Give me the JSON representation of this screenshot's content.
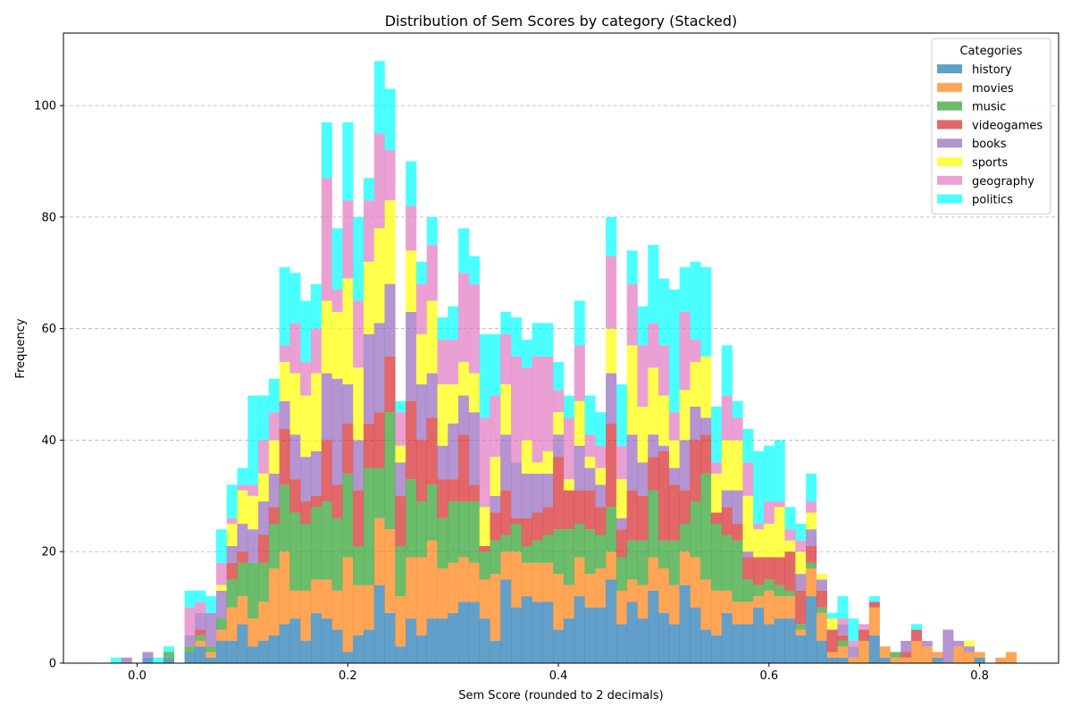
{
  "chart_data": {
    "type": "bar",
    "stacked": true,
    "title": "Distribution of Sem Scores by category (Stacked)",
    "xlabel": "Sem Score (rounded to 2 decimals)",
    "ylabel": "Frequency",
    "xlim": [
      -0.07,
      0.875
    ],
    "ylim": [
      0,
      113
    ],
    "x_ticks": [
      0.0,
      0.2,
      0.4,
      0.6,
      0.8
    ],
    "x_tick_labels": [
      "0.0",
      "0.2",
      "0.4",
      "0.6",
      "0.8"
    ],
    "y_ticks": [
      0,
      20,
      40,
      60,
      80,
      100
    ],
    "y_tick_labels": [
      "0",
      "20",
      "40",
      "60",
      "80",
      "100"
    ],
    "grid": "y-dashed",
    "bin_width": 0.01,
    "legend": {
      "title": "Categories",
      "position": "top-right"
    },
    "x": [
      -0.02,
      -0.01,
      0.0,
      0.01,
      0.02,
      0.03,
      0.04,
      0.05,
      0.06,
      0.07,
      0.08,
      0.09,
      0.1,
      0.11,
      0.12,
      0.13,
      0.14,
      0.15,
      0.16,
      0.17,
      0.18,
      0.19,
      0.2,
      0.21,
      0.22,
      0.23,
      0.24,
      0.25,
      0.26,
      0.27,
      0.28,
      0.29,
      0.3,
      0.31,
      0.32,
      0.33,
      0.34,
      0.35,
      0.36,
      0.37,
      0.38,
      0.39,
      0.4,
      0.41,
      0.42,
      0.43,
      0.44,
      0.45,
      0.46,
      0.47,
      0.48,
      0.49,
      0.5,
      0.51,
      0.52,
      0.53,
      0.54,
      0.55,
      0.56,
      0.57,
      0.58,
      0.59,
      0.6,
      0.61,
      0.62,
      0.63,
      0.64,
      0.65,
      0.66,
      0.67,
      0.68,
      0.69,
      0.7,
      0.71,
      0.72,
      0.73,
      0.74,
      0.75,
      0.76,
      0.77,
      0.78,
      0.79,
      0.8,
      0.81,
      0.82,
      0.83
    ],
    "series": [
      {
        "name": "history",
        "color": "#1f77b4",
        "values": [
          0,
          0,
          0,
          1,
          0,
          1,
          0,
          2,
          3,
          1,
          4,
          4,
          7,
          3,
          4,
          5,
          7,
          8,
          4,
          9,
          8,
          6,
          2,
          5,
          6,
          14,
          9,
          3,
          8,
          5,
          8,
          8,
          9,
          11,
          11,
          8,
          4,
          15,
          10,
          12,
          11,
          11,
          6,
          8,
          12,
          10,
          10,
          15,
          7,
          11,
          8,
          13,
          9,
          7,
          14,
          10,
          6,
          5,
          9,
          7,
          7,
          10,
          7,
          8,
          8,
          5,
          12,
          4,
          1,
          1,
          0,
          0,
          5,
          1,
          0,
          0,
          0,
          0,
          1,
          0,
          0,
          0,
          1,
          0,
          0,
          0
        ]
      },
      {
        "name": "movies",
        "color": "#ff7f0e",
        "values": [
          0,
          0,
          0,
          0,
          0,
          0,
          0,
          0,
          1,
          1,
          2,
          6,
          5,
          5,
          7,
          12,
          13,
          5,
          9,
          6,
          7,
          7,
          17,
          9,
          8,
          12,
          15,
          9,
          11,
          14,
          14,
          9,
          9,
          8,
          7,
          7,
          12,
          5,
          10,
          6,
          7,
          7,
          10,
          6,
          7,
          6,
          7,
          5,
          6,
          4,
          6,
          6,
          8,
          7,
          6,
          9,
          9,
          8,
          4,
          4,
          4,
          2,
          6,
          4,
          4,
          1,
          5,
          5,
          1,
          2,
          1,
          4,
          5,
          2,
          1,
          1,
          4,
          3,
          1,
          0,
          3,
          2,
          1,
          0,
          1,
          2
        ]
      },
      {
        "name": "music",
        "color": "#2ca02c",
        "values": [
          0,
          0,
          0,
          0,
          0,
          1,
          0,
          1,
          1,
          1,
          2,
          5,
          6,
          10,
          7,
          8,
          12,
          14,
          12,
          13,
          14,
          13,
          15,
          7,
          21,
          9,
          21,
          9,
          14,
          10,
          10,
          9,
          11,
          10,
          11,
          5,
          6,
          3,
          5,
          3,
          4,
          5,
          8,
          10,
          6,
          8,
          6,
          8,
          6,
          7,
          8,
          12,
          5,
          8,
          5,
          10,
          19,
          12,
          10,
          11,
          4,
          2,
          2,
          2,
          1,
          1,
          1,
          1,
          0,
          1,
          0,
          0,
          0,
          0,
          1,
          0,
          0,
          0,
          0,
          0,
          0,
          0,
          0,
          0,
          0,
          0
        ]
      },
      {
        "name": "videogames",
        "color": "#d62728",
        "values": [
          0,
          0,
          0,
          0,
          0,
          0,
          0,
          0,
          1,
          0,
          0,
          3,
          2,
          0,
          5,
          3,
          10,
          6,
          4,
          2,
          11,
          6,
          9,
          10,
          8,
          10,
          10,
          9,
          14,
          11,
          12,
          7,
          4,
          12,
          3,
          1,
          5,
          8,
          1,
          5,
          5,
          5,
          13,
          7,
          6,
          7,
          5,
          15,
          5,
          9,
          8,
          6,
          16,
          10,
          6,
          11,
          7,
          2,
          5,
          3,
          4,
          5,
          4,
          5,
          7,
          6,
          3,
          3,
          4,
          1,
          0,
          2,
          1,
          0,
          0,
          1,
          2,
          0,
          0,
          0,
          0,
          0,
          0,
          0,
          0,
          0
        ]
      },
      {
        "name": "books",
        "color": "#9467bd",
        "values": [
          0,
          1,
          0,
          1,
          0,
          0,
          0,
          2,
          3,
          6,
          5,
          3,
          5,
          6,
          6,
          6,
          5,
          8,
          8,
          8,
          12,
          19,
          7,
          9,
          16,
          16,
          13,
          6,
          16,
          10,
          8,
          6,
          10,
          7,
          13,
          0,
          3,
          10,
          10,
          8,
          7,
          6,
          4,
          0,
          8,
          4,
          4,
          9,
          2,
          10,
          6,
          4,
          1,
          3,
          9,
          6,
          3,
          0,
          3,
          6,
          1,
          0,
          0,
          0,
          0,
          3,
          3,
          2,
          0,
          2,
          2,
          0,
          0,
          0,
          0,
          2,
          0,
          1,
          0,
          6,
          1,
          1,
          0,
          0,
          0,
          0
        ]
      },
      {
        "name": "sports",
        "color": "#ffff00",
        "values": [
          0,
          0,
          0,
          0,
          0,
          0,
          0,
          0,
          0,
          0,
          1,
          4,
          6,
          6,
          5,
          6,
          7,
          11,
          11,
          14,
          13,
          12,
          19,
          13,
          13,
          17,
          15,
          3,
          11,
          9,
          13,
          11,
          7,
          6,
          7,
          7,
          7,
          9,
          0,
          6,
          2,
          4,
          4,
          2,
          8,
          2,
          3,
          8,
          7,
          16,
          10,
          12,
          9,
          5,
          9,
          8,
          11,
          7,
          9,
          9,
          10,
          5,
          6,
          9,
          2,
          4,
          3,
          1,
          2,
          0,
          0,
          0,
          0,
          0,
          0,
          0,
          0,
          0,
          0,
          0,
          0,
          1,
          0,
          0,
          0,
          0
        ]
      },
      {
        "name": "geography",
        "color": "#e377c2",
        "values": [
          0,
          0,
          0,
          0,
          0,
          0,
          0,
          5,
          2,
          0,
          4,
          1,
          1,
          2,
          6,
          5,
          3,
          9,
          6,
          8,
          22,
          4,
          14,
          12,
          11,
          17,
          9,
          6,
          8,
          9,
          10,
          8,
          8,
          16,
          16,
          16,
          11,
          9,
          19,
          13,
          19,
          17,
          4,
          11,
          10,
          4,
          4,
          13,
          6,
          11,
          11,
          8,
          9,
          5,
          14,
          4,
          0,
          2,
          8,
          4,
          6,
          1,
          4,
          1,
          2,
          2,
          2,
          0,
          0,
          1,
          1,
          1,
          0,
          0,
          0,
          0,
          0,
          0,
          0,
          0,
          0,
          0,
          0,
          0,
          0,
          0
        ]
      },
      {
        "name": "politics",
        "color": "#00ffff",
        "values": [
          1,
          0,
          0,
          0,
          1,
          1,
          0,
          3,
          2,
          3,
          6,
          6,
          3,
          16,
          8,
          6,
          14,
          9,
          11,
          8,
          10,
          11,
          14,
          15,
          4,
          13,
          11,
          2,
          8,
          4,
          5,
          4,
          6,
          8,
          5,
          15,
          11,
          4,
          7,
          5,
          6,
          6,
          5,
          4,
          8,
          7,
          6,
          7,
          11,
          6,
          7,
          14,
          12,
          22,
          8,
          14,
          16,
          10,
          9,
          3,
          6,
          13,
          10,
          11,
          4,
          3,
          5,
          0,
          1,
          4,
          4,
          0,
          1,
          0,
          0,
          0,
          1,
          0,
          0,
          0,
          0,
          0,
          0,
          0,
          0,
          0
        ]
      }
    ]
  }
}
